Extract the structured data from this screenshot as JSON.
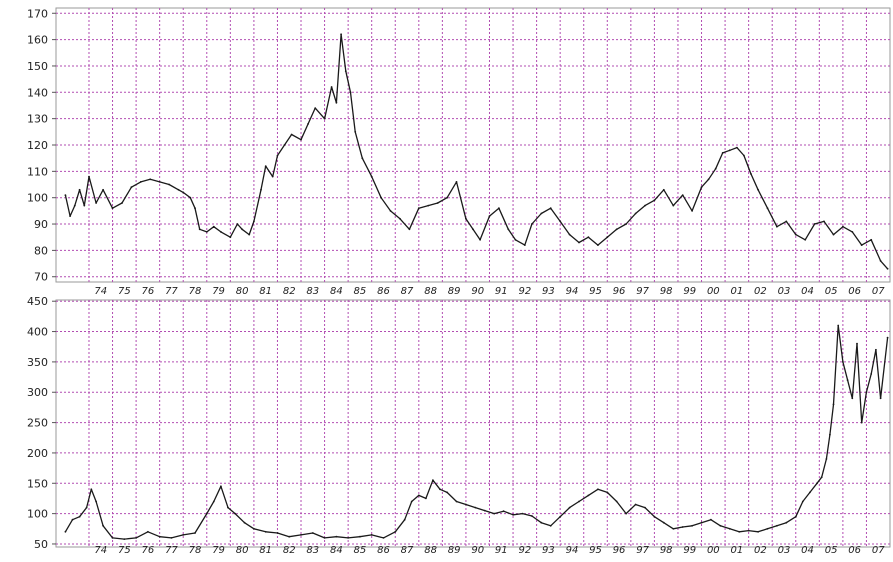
{
  "chart_data": [
    {
      "type": "line",
      "title": "",
      "xlabel": "",
      "ylabel": "",
      "ylim": [
        68,
        172
      ],
      "xlim": [
        1972.6,
        2008.0
      ],
      "yticks": [
        70,
        80,
        90,
        100,
        110,
        120,
        130,
        140,
        150,
        160,
        170
      ],
      "xtick_labels": [
        "74",
        "75",
        "76",
        "77",
        "78",
        "79",
        "80",
        "81",
        "82",
        "83",
        "84",
        "85",
        "86",
        "87",
        "88",
        "89",
        "90",
        "91",
        "92",
        "93",
        "94",
        "95",
        "96",
        "97",
        "98",
        "99",
        "00",
        "01",
        "02",
        "03",
        "04",
        "05",
        "06",
        "07"
      ],
      "xtick_years": [
        1974,
        1975,
        1976,
        1977,
        1978,
        1979,
        1980,
        1981,
        1982,
        1983,
        1984,
        1985,
        1986,
        1987,
        1988,
        1989,
        1990,
        1991,
        1992,
        1993,
        1994,
        1995,
        1996,
        1997,
        1998,
        1999,
        2000,
        2001,
        2002,
        2003,
        2004,
        2005,
        2006,
        2007
      ],
      "grid": true,
      "colors": {
        "grid": "#b24db2",
        "line": "#1a1a1a"
      },
      "series": [
        {
          "x": [
            1973.0,
            1973.2,
            1973.4,
            1973.6,
            1973.8,
            1974.0,
            1974.3,
            1974.6,
            1975.0,
            1975.4,
            1975.8,
            1976.2,
            1976.6,
            1977.0,
            1977.4,
            1977.8,
            1978.0,
            1978.3,
            1978.5,
            1978.7,
            1979.0,
            1979.3,
            1979.6,
            1980.0,
            1980.3,
            1980.5,
            1980.8,
            1981.0,
            1981.3,
            1981.5,
            1981.8,
            1982.0,
            1982.3,
            1982.6,
            1983.0,
            1983.3,
            1983.6,
            1984.0,
            1984.3,
            1984.5,
            1984.7,
            1984.9,
            1985.1,
            1985.3,
            1985.6,
            1986.0,
            1986.4,
            1986.8,
            1987.2,
            1987.6,
            1988.0,
            1988.4,
            1988.8,
            1989.2,
            1989.6,
            1990.0,
            1990.3,
            1990.6,
            1991.0,
            1991.4,
            1991.8,
            1992.1,
            1992.5,
            1992.8,
            1993.2,
            1993.6,
            1994.0,
            1994.4,
            1994.8,
            1995.2,
            1995.6,
            1996.0,
            1996.4,
            1996.8,
            1997.2,
            1997.6,
            1998.0,
            1998.4,
            1998.8,
            1999.2,
            1999.6,
            2000.0,
            2000.3,
            2000.6,
            2000.9,
            2001.2,
            2001.5,
            2001.8,
            2002.1,
            2002.4,
            2002.8,
            2003.2,
            2003.6,
            2004.0,
            2004.4,
            2004.8,
            2005.2,
            2005.6,
            2006.0,
            2006.4,
            2006.8,
            2007.2,
            2007.6,
            2007.9
          ],
          "y": [
            101,
            93,
            97,
            103,
            97,
            108,
            98,
            103,
            96,
            98,
            104,
            106,
            107,
            106,
            105,
            103,
            102,
            100,
            96,
            88,
            87,
            89,
            87,
            85,
            90,
            88,
            86,
            91,
            103,
            112,
            108,
            116,
            120,
            124,
            122,
            128,
            134,
            130,
            142,
            136,
            162,
            148,
            140,
            125,
            115,
            108,
            100,
            95,
            92,
            88,
            96,
            97,
            98,
            100,
            106,
            92,
            88,
            84,
            93,
            96,
            88,
            84,
            82,
            90,
            94,
            96,
            91,
            86,
            83,
            85,
            82,
            85,
            88,
            90,
            94,
            97,
            99,
            103,
            97,
            101,
            95,
            104,
            107,
            111,
            117,
            118,
            119,
            116,
            109,
            103,
            96,
            89,
            91,
            86,
            84,
            90,
            91,
            86,
            89,
            87,
            82,
            84,
            76,
            73
          ]
        }
      ]
    },
    {
      "type": "line",
      "title": "",
      "xlabel": "",
      "ylabel": "",
      "ylim": [
        45,
        452
      ],
      "xlim": [
        1972.6,
        2008.0
      ],
      "yticks": [
        50,
        100,
        150,
        200,
        250,
        300,
        350,
        400,
        450
      ],
      "xtick_labels": [
        "74",
        "75",
        "76",
        "77",
        "78",
        "79",
        "80",
        "81",
        "82",
        "83",
        "84",
        "85",
        "86",
        "87",
        "88",
        "89",
        "90",
        "91",
        "92",
        "93",
        "94",
        "95",
        "96",
        "97",
        "98",
        "99",
        "00",
        "01",
        "02",
        "03",
        "04",
        "05",
        "06",
        "07"
      ],
      "xtick_years": [
        1974,
        1975,
        1976,
        1977,
        1978,
        1979,
        1980,
        1981,
        1982,
        1983,
        1984,
        1985,
        1986,
        1987,
        1988,
        1989,
        1990,
        1991,
        1992,
        1993,
        1994,
        1995,
        1996,
        1997,
        1998,
        1999,
        2000,
        2001,
        2002,
        2003,
        2004,
        2005,
        2006,
        2007
      ],
      "grid": true,
      "colors": {
        "grid": "#b24db2",
        "line": "#1a1a1a"
      },
      "series": [
        {
          "x": [
            1973.0,
            1973.3,
            1973.6,
            1973.9,
            1974.1,
            1974.3,
            1974.6,
            1975.0,
            1975.5,
            1976.0,
            1976.5,
            1977.0,
            1977.5,
            1978.0,
            1978.5,
            1979.0,
            1979.3,
            1979.6,
            1979.9,
            1980.2,
            1980.6,
            1981.0,
            1981.5,
            1982.0,
            1982.5,
            1983.0,
            1983.5,
            1984.0,
            1984.5,
            1985.0,
            1985.5,
            1986.0,
            1986.5,
            1987.0,
            1987.4,
            1987.7,
            1988.0,
            1988.3,
            1988.6,
            1988.9,
            1989.2,
            1989.6,
            1990.0,
            1990.4,
            1990.8,
            1991.2,
            1991.6,
            1992.0,
            1992.4,
            1992.8,
            1993.2,
            1993.6,
            1994.0,
            1994.4,
            1994.8,
            1995.2,
            1995.6,
            1996.0,
            1996.4,
            1996.8,
            1997.2,
            1997.6,
            1998.0,
            1998.4,
            1998.8,
            1999.2,
            1999.6,
            2000.0,
            2000.4,
            2000.8,
            2001.2,
            2001.6,
            2002.0,
            2002.4,
            2002.8,
            2003.2,
            2003.6,
            2004.0,
            2004.3,
            2004.6,
            2004.9,
            2005.1,
            2005.3,
            2005.45,
            2005.6,
            2005.8,
            2006.0,
            2006.2,
            2006.4,
            2006.6,
            2006.8,
            2007.0,
            2007.2,
            2007.4,
            2007.6,
            2007.9
          ],
          "y": [
            70,
            90,
            95,
            110,
            140,
            120,
            80,
            60,
            58,
            60,
            70,
            62,
            60,
            65,
            68,
            100,
            120,
            145,
            110,
            100,
            85,
            75,
            70,
            68,
            62,
            65,
            68,
            60,
            62,
            60,
            62,
            65,
            60,
            70,
            90,
            120,
            130,
            125,
            155,
            140,
            135,
            120,
            115,
            110,
            105,
            100,
            104,
            98,
            100,
            96,
            85,
            80,
            95,
            110,
            120,
            130,
            140,
            135,
            120,
            100,
            115,
            110,
            95,
            85,
            75,
            78,
            80,
            85,
            90,
            80,
            75,
            70,
            72,
            70,
            75,
            80,
            85,
            95,
            120,
            135,
            150,
            160,
            190,
            230,
            280,
            410,
            350,
            320,
            290,
            380,
            250,
            300,
            330,
            370,
            290,
            390
          ]
        }
      ]
    }
  ]
}
